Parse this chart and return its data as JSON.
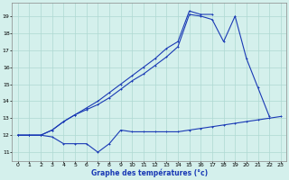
{
  "title": "Graphe des températures (°c)",
  "bg_color": "#d4f0ec",
  "grid_color": "#aed8d2",
  "line_color": "#1a3ab5",
  "xlim": [
    -0.5,
    23.5
  ],
  "ylim": [
    10.5,
    19.8
  ],
  "xticks": [
    0,
    1,
    2,
    3,
    4,
    5,
    6,
    7,
    8,
    9,
    10,
    11,
    12,
    13,
    14,
    15,
    16,
    17,
    18,
    19,
    20,
    21,
    22,
    23
  ],
  "yticks": [
    11,
    12,
    13,
    14,
    15,
    16,
    17,
    18,
    19
  ],
  "line1_x": [
    0,
    1,
    2,
    3,
    4,
    5,
    6,
    7,
    8,
    9,
    10,
    11,
    12,
    13,
    14,
    15,
    16,
    17,
    18,
    19,
    20,
    21,
    22,
    23
  ],
  "line1_y": [
    12,
    12,
    12,
    11.9,
    11.5,
    11.5,
    11.5,
    11.0,
    11.5,
    12.3,
    12.2,
    12.2,
    12.2,
    12.2,
    12.2,
    12.3,
    12.4,
    12.5,
    12.6,
    12.7,
    12.8,
    12.9,
    13.0,
    13.1
  ],
  "line2_x": [
    0,
    1,
    2,
    3,
    4,
    5,
    6,
    7,
    8,
    9,
    10,
    11,
    12,
    13,
    14,
    15,
    16,
    17,
    18,
    19,
    20,
    21,
    22
  ],
  "line2_y": [
    12,
    12,
    12,
    12.3,
    12.8,
    13.2,
    13.5,
    13.8,
    14.2,
    14.7,
    15.2,
    15.6,
    16.1,
    16.6,
    17.2,
    19.1,
    19.0,
    18.8,
    17.5,
    19.0,
    16.5,
    14.8,
    13.1
  ],
  "line3_x": [
    0,
    1,
    2,
    3,
    4,
    5,
    6,
    7,
    8,
    9,
    10,
    11,
    12,
    13,
    14,
    15,
    16,
    17
  ],
  "line3_y": [
    12,
    12,
    12,
    12.3,
    12.8,
    13.2,
    13.6,
    14.0,
    14.5,
    15.0,
    15.5,
    16.0,
    16.5,
    17.1,
    17.5,
    19.3,
    19.1,
    19.1
  ]
}
